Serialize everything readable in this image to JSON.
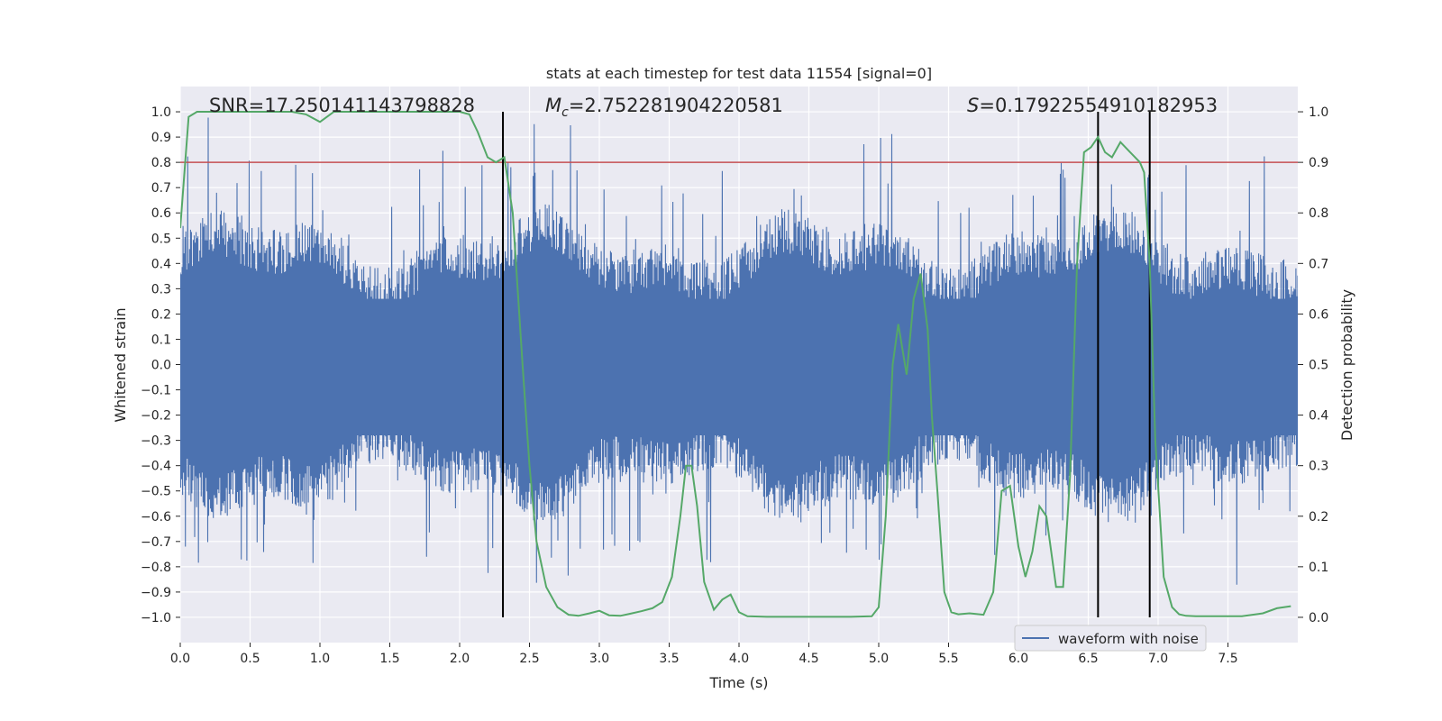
{
  "chart_data": {
    "type": "line",
    "title": "stats at each timestep for test data 11554 [signal=0]",
    "xlabel": "Time (s)",
    "ylabel_left": "Whitened strain",
    "ylabel_right": "Detection probability",
    "xlim": [
      0,
      8.0
    ],
    "ylim_left": [
      -1.1,
      1.1
    ],
    "ylim_right": [
      -0.05,
      1.05
    ],
    "x_ticks": [
      0.0,
      0.5,
      1.0,
      1.5,
      2.0,
      2.5,
      3.0,
      3.5,
      4.0,
      4.5,
      5.0,
      5.5,
      6.0,
      6.5,
      7.0,
      7.5
    ],
    "x_tick_labels": [
      "0.0",
      "0.5",
      "1.0",
      "1.5",
      "2.0",
      "2.5",
      "3.0",
      "3.5",
      "4.0",
      "4.5",
      "5.0",
      "5.5",
      "6.0",
      "6.5",
      "7.0",
      "7.5"
    ],
    "y_left_ticks": [
      1.0,
      0.9,
      0.8,
      0.7,
      0.6,
      0.5,
      0.4,
      0.3,
      0.2,
      0.1,
      0.0,
      -0.1,
      -0.2,
      -0.3,
      -0.4,
      -0.5,
      -0.6,
      -0.7,
      -0.8,
      -0.9,
      -1.0
    ],
    "y_left_tick_labels": [
      "1.0",
      "0.9",
      "0.8",
      "0.7",
      "0.6",
      "0.5",
      "0.4",
      "0.3",
      "0.2",
      "0.1",
      "0.0",
      "−0.1",
      "−0.2",
      "−0.3",
      "−0.4",
      "−0.5",
      "−0.6",
      "−0.7",
      "−0.8",
      "−0.9",
      "−1.0"
    ],
    "y_right_ticks": [
      1.0,
      0.9,
      0.8,
      0.7,
      0.6,
      0.5,
      0.4,
      0.3,
      0.2,
      0.1,
      0.0
    ],
    "y_right_tick_labels": [
      "1.0",
      "0.9",
      "0.8",
      "0.7",
      "0.6",
      "0.5",
      "0.4",
      "0.3",
      "0.2",
      "0.1",
      "0.0"
    ],
    "annotations": {
      "snr": "SNR=17.250141143798828",
      "mc_symbol": "M",
      "mc_sub": "c",
      "mc_value": "=2.752281904220581",
      "s_symbol": "S",
      "s_value": "=0.17922554910182953"
    },
    "threshold": {
      "value": 0.9,
      "axis": "right",
      "color": "#c44e52"
    },
    "vertical_markers": [
      2.31,
      6.57,
      6.94
    ],
    "legend": {
      "label": "waveform with noise",
      "location": "lower-right"
    },
    "colors": {
      "waveform": "#4c72b0",
      "probability": "#55a868",
      "threshold": "#c44e52",
      "markers": "#000000",
      "plot_bg": "#eaeaf2",
      "grid": "#ffffff"
    },
    "series": [
      {
        "name": "Detection probability",
        "axis": "right",
        "x": [
          0.0,
          0.06,
          0.12,
          0.2,
          0.3,
          0.4,
          0.5,
          0.6,
          0.7,
          0.8,
          0.9,
          1.0,
          1.1,
          1.2,
          1.3,
          1.4,
          1.5,
          1.6,
          1.7,
          1.8,
          1.9,
          2.0,
          2.07,
          2.13,
          2.2,
          2.26,
          2.32,
          2.38,
          2.45,
          2.5,
          2.55,
          2.62,
          2.7,
          2.78,
          2.85,
          2.93,
          3.0,
          3.07,
          3.15,
          3.22,
          3.3,
          3.38,
          3.45,
          3.52,
          3.58,
          3.62,
          3.66,
          3.7,
          3.75,
          3.82,
          3.88,
          3.94,
          4.0,
          4.06,
          4.2,
          4.5,
          4.8,
          4.95,
          5.0,
          5.05,
          5.1,
          5.14,
          5.2,
          5.25,
          5.3,
          5.35,
          5.38,
          5.42,
          5.47,
          5.52,
          5.57,
          5.65,
          5.75,
          5.82,
          5.88,
          5.94,
          6.0,
          6.05,
          6.1,
          6.15,
          6.2,
          6.27,
          6.32,
          6.37,
          6.42,
          6.47,
          6.52,
          6.57,
          6.62,
          6.67,
          6.73,
          6.8,
          6.87,
          6.9,
          6.94,
          6.98,
          7.04,
          7.1,
          7.15,
          7.2,
          7.27,
          7.35,
          7.45,
          7.6,
          7.75,
          7.85,
          7.95
        ],
        "y": [
          0.77,
          0.99,
          1.0,
          1.0,
          1.0,
          1.0,
          1.0,
          1.0,
          1.0,
          1.0,
          0.995,
          0.98,
          1.0,
          1.0,
          1.0,
          1.0,
          1.0,
          1.0,
          1.0,
          1.0,
          1.0,
          1.0,
          0.995,
          0.96,
          0.91,
          0.9,
          0.91,
          0.8,
          0.5,
          0.3,
          0.15,
          0.06,
          0.02,
          0.005,
          0.003,
          0.008,
          0.013,
          0.004,
          0.003,
          0.007,
          0.012,
          0.018,
          0.03,
          0.08,
          0.2,
          0.3,
          0.3,
          0.22,
          0.07,
          0.015,
          0.035,
          0.045,
          0.01,
          0.002,
          0.001,
          0.001,
          0.001,
          0.002,
          0.02,
          0.2,
          0.5,
          0.58,
          0.48,
          0.63,
          0.68,
          0.57,
          0.4,
          0.25,
          0.05,
          0.01,
          0.006,
          0.008,
          0.005,
          0.05,
          0.25,
          0.26,
          0.14,
          0.08,
          0.13,
          0.22,
          0.2,
          0.06,
          0.06,
          0.28,
          0.7,
          0.92,
          0.93,
          0.95,
          0.92,
          0.91,
          0.94,
          0.92,
          0.9,
          0.88,
          0.7,
          0.35,
          0.08,
          0.02,
          0.006,
          0.003,
          0.002,
          0.002,
          0.002,
          0.002,
          0.008,
          0.018,
          0.022
        ]
      },
      {
        "name": "waveform with noise",
        "axis": "left",
        "description": "dense whitened-strain samples, roughly -1.0 to 1.0"
      }
    ]
  }
}
